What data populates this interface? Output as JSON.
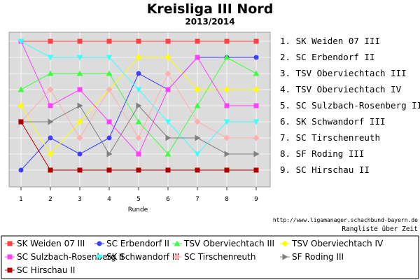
{
  "chart_data": {
    "type": "line",
    "title": "Kreisliga III Nord",
    "subtitle": "2013/2014",
    "xlabel": "Runde",
    "ylabel": "",
    "x": [
      1,
      2,
      3,
      4,
      5,
      6,
      7,
      8,
      9
    ],
    "ylim": [
      9,
      1
    ],
    "grid": true,
    "legend_position": "bottom",
    "series": [
      {
        "name": "SK Weiden 07 III",
        "color": "#ff4040",
        "marker": "square",
        "values": [
          1,
          1,
          1,
          1,
          1,
          1,
          1,
          1,
          1
        ]
      },
      {
        "name": "SC Erbendorf II",
        "color": "#4040ff",
        "marker": "circle",
        "values": [
          9,
          7,
          8,
          7,
          3,
          4,
          2,
          2,
          2
        ]
      },
      {
        "name": "TSV Oberviechtach III",
        "color": "#40ff40",
        "marker": "triangle-up",
        "values": [
          4,
          3,
          3,
          3,
          6,
          8,
          5,
          2,
          3
        ]
      },
      {
        "name": "TSV Oberviechtach IV",
        "color": "#ffff00",
        "marker": "diamond",
        "values": [
          5,
          8,
          6,
          4,
          2,
          2,
          4,
          4,
          4
        ]
      },
      {
        "name": "SC Sulzbach-Rosenberg II",
        "color": "#ff40ff",
        "marker": "square",
        "values": [
          1,
          5,
          4,
          6,
          8,
          4,
          2,
          5,
          5
        ]
      },
      {
        "name": "SK Schwandorf III",
        "color": "#40ffff",
        "marker": "triangle-down",
        "values": [
          1,
          2,
          2,
          2,
          4,
          6,
          8,
          6,
          6
        ]
      },
      {
        "name": "SC Tirschenreuth",
        "color": "#ffb0b0",
        "marker": "diamond",
        "values": [
          6,
          4,
          7,
          4,
          7,
          3,
          6,
          7,
          7
        ]
      },
      {
        "name": "SF Roding III",
        "color": "#808080",
        "marker": "triangle-right",
        "values": [
          6,
          6,
          5,
          8,
          5,
          7,
          7,
          8,
          8
        ]
      },
      {
        "name": "SC Hirschau II",
        "color": "#b00000",
        "marker": "square",
        "values": [
          6,
          9,
          9,
          9,
          9,
          9,
          9,
          9,
          9
        ]
      }
    ],
    "final_ranking": [
      "1. SK Weiden 07 III",
      "2. SC Erbendorf II",
      "3. TSV Oberviechtach III",
      "4. TSV Oberviechtach IV",
      "5. SC Sulzbach-Rosenberg II",
      "6. SK Schwandorf III",
      "7. SC Tirschenreuth",
      "8. SF Roding III",
      "9. SC Hirschau II"
    ]
  },
  "footer": {
    "url": "http://www.ligamanager.schachbund-bayern.de",
    "caption": "Rangliste über Zeit"
  }
}
